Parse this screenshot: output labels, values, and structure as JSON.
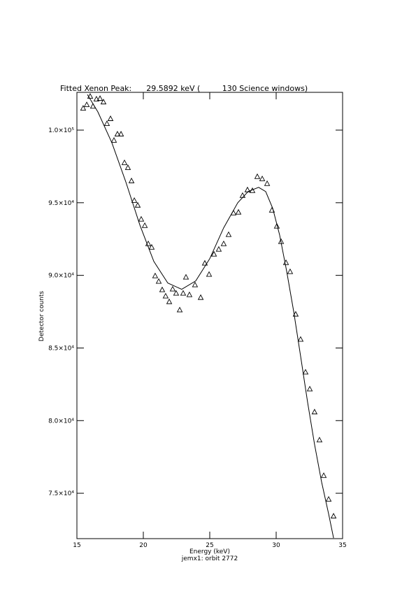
{
  "chart_data": {
    "type": "scatter",
    "title": "Fitted Xenon Peak:      29.5892 keV (         130 Science windows)",
    "x_label": "Energy (keV)",
    "y_label": "Detector counts",
    "subtitle": "jemx1: orbit 2772",
    "xlim": [
      15,
      35
    ],
    "xticks": [
      15,
      20,
      25,
      30,
      35
    ],
    "ylim": [
      71875,
      102600
    ],
    "yticks": [
      {
        "value": 75000,
        "label": "7.5×10⁴"
      },
      {
        "value": 80000,
        "label": "8.0×10⁴"
      },
      {
        "value": 85000,
        "label": "8.5×10⁴"
      },
      {
        "value": 90000,
        "label": "9.0×10⁴"
      },
      {
        "value": 95000,
        "label": "9.5×10⁴"
      },
      {
        "value": 100000,
        "label": "1.0×10⁵"
      }
    ],
    "series": [
      {
        "mode": "markers",
        "marker": "triangle",
        "color": "#000000",
        "x": [
          15.47,
          15.74,
          16.0,
          16.21,
          16.47,
          16.74,
          17.0,
          17.26,
          17.53,
          17.79,
          18.05,
          18.32,
          18.58,
          18.84,
          19.11,
          19.32,
          19.58,
          19.84,
          20.11,
          20.37,
          20.63,
          20.89,
          21.16,
          21.42,
          21.68,
          21.95,
          22.21,
          22.47,
          22.74,
          23.0,
          23.21,
          23.47,
          23.89,
          24.32,
          24.63,
          24.95,
          25.32,
          25.68,
          26.05,
          26.42,
          26.79,
          27.16,
          27.47,
          27.84,
          28.21,
          28.58,
          28.95,
          29.32,
          29.68,
          30.05,
          30.37,
          30.74,
          31.05,
          31.47,
          31.84,
          32.21,
          32.53,
          32.89,
          33.26,
          33.58,
          33.95,
          34.32
        ],
        "values": [
          101490,
          101730,
          102310,
          101630,
          102120,
          102160,
          101920,
          100430,
          100770,
          99280,
          99710,
          99710,
          97740,
          97400,
          96490,
          95140,
          94810,
          93850,
          93410,
          92160,
          91920,
          89950,
          89570,
          88990,
          88560,
          88170,
          89040,
          88750,
          87600,
          88750,
          89860,
          88650,
          89330,
          88460,
          90820,
          90050,
          91440,
          91780,
          92160,
          92790,
          94280,
          94330,
          95480,
          95870,
          95820,
          96780,
          96630,
          96300,
          94470,
          93370,
          92310,
          90860,
          90240,
          87310,
          85580,
          83320,
          82160,
          80580,
          78650,
          76200,
          74570,
          73410
        ]
      },
      {
        "mode": "line",
        "color": "#000000",
        "x": [
          15.79,
          16.58,
          17.63,
          18.68,
          19.74,
          20.79,
          21.84,
          22.89,
          23.95,
          25.0,
          26.05,
          27.11,
          27.89,
          28.68,
          29.21,
          29.74,
          30.26,
          30.79,
          31.32,
          31.84,
          32.37,
          32.89,
          33.42,
          33.95,
          34.32
        ],
        "values": [
          102450,
          101250,
          99130,
          96440,
          93460,
          90960,
          89470,
          89040,
          89620,
          91150,
          93270,
          95000,
          95770,
          96060,
          95770,
          94610,
          92790,
          90290,
          87500,
          84420,
          81250,
          78360,
          75770,
          73560,
          71920
        ]
      }
    ]
  }
}
